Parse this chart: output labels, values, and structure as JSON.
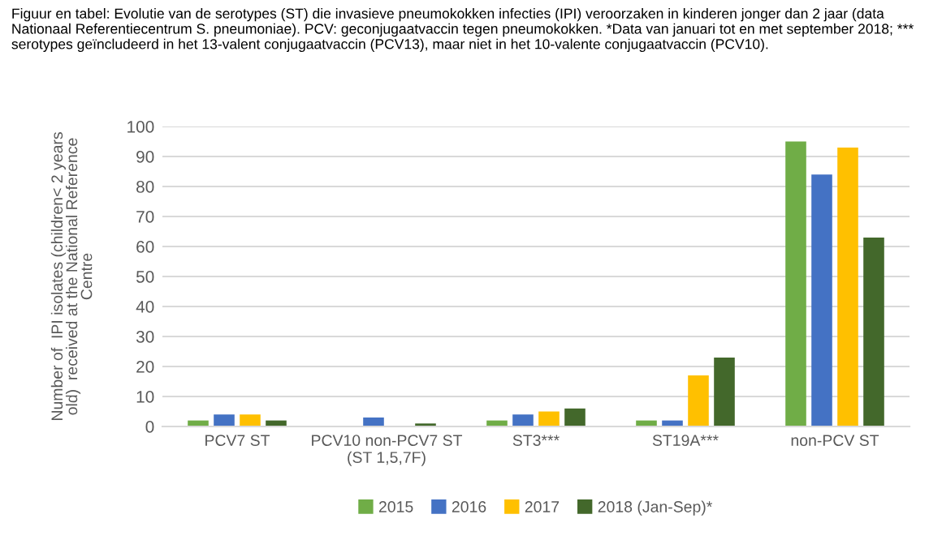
{
  "chart_data": {
    "type": "bar",
    "title": "Figuur en tabel: Evolutie van de serotypes (ST) die invasieve pneumokokken infecties (IPI) veroorzaken in kinderen jonger dan 2 jaar (data Nationaal Referentiecentrum S. pneumoniae). PCV: geconjugaatvaccin tegen pneumokokken. *Data van januari tot en met september 2018; *** serotypes geïncludeerd in het 13-valent conjugaatvaccin (PCV13), maar niet in het 10-valente conjugaatvaccin (PCV10).",
    "ylabel": "Number of  IPI isolates (children< 2 years\nold)  received at the National Reference\nCentre",
    "categories": [
      "PCV7 ST",
      "PCV10 non-PCV7 ST\n(ST 1,5,7F)",
      "ST3***",
      "ST19A***",
      "non-PCV ST"
    ],
    "series": [
      {
        "name": "2015",
        "color": "#70ad47",
        "values": [
          2,
          0,
          2,
          2,
          95
        ]
      },
      {
        "name": "2016",
        "color": "#4472c4",
        "values": [
          4,
          3,
          4,
          2,
          84
        ]
      },
      {
        "name": "2017",
        "color": "#ffc000",
        "values": [
          4,
          0,
          5,
          17,
          93
        ]
      },
      {
        "name": "2018 (Jan-Sep)*",
        "color": "#43682b",
        "values": [
          2,
          1,
          6,
          23,
          63
        ]
      }
    ],
    "ylim": [
      0,
      100
    ],
    "yticks": [
      0,
      10,
      20,
      30,
      40,
      50,
      60,
      70,
      80,
      90,
      100
    ],
    "grid": "y",
    "legend": "bottom"
  }
}
